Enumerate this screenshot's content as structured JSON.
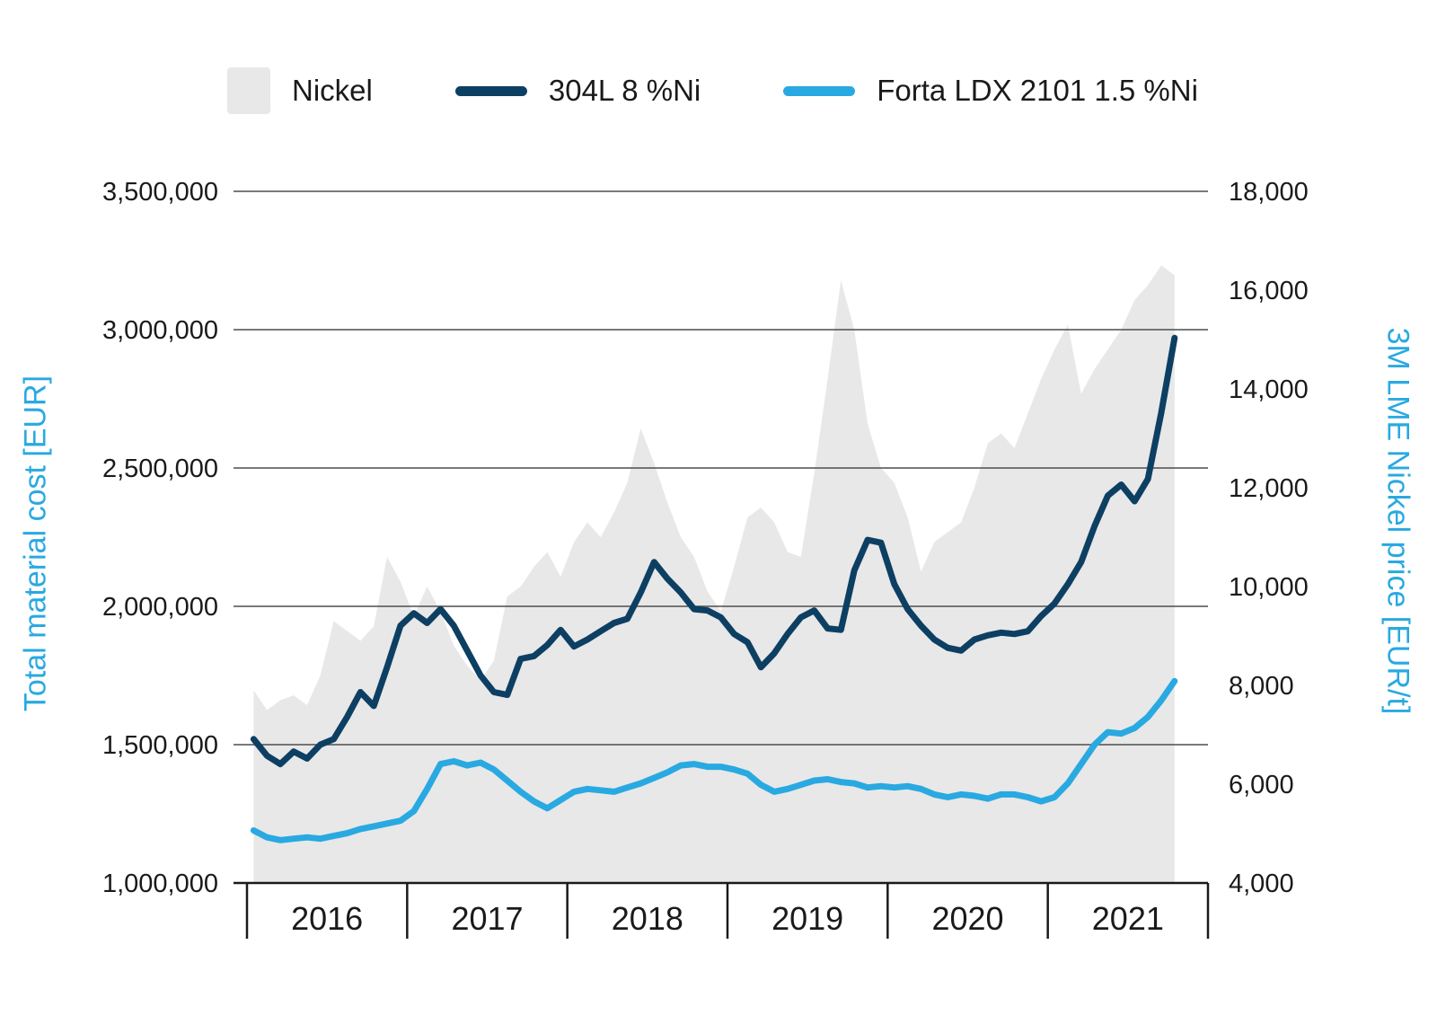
{
  "chart_data": {
    "type": "line",
    "title": "",
    "years": [
      "2016",
      "2017",
      "2018",
      "2019",
      "2020",
      "2021"
    ],
    "left_axis": {
      "label": "Total material cost [EUR]",
      "min": 1000000,
      "max": 3500000,
      "tick_values": [
        1000000,
        1500000,
        2000000,
        2500000,
        3000000,
        3500000
      ],
      "tick_labels": [
        "1,000,000",
        "1,500,000",
        "2,000,000",
        "2,500,000",
        "3,000,000",
        "3,500,000"
      ]
    },
    "right_axis": {
      "label": "3M LME Nickel price [EUR/t]",
      "min": 4000,
      "max": 18000,
      "tick_values": [
        4000,
        6000,
        8000,
        10000,
        12000,
        14000,
        16000,
        18000
      ],
      "tick_labels": [
        "4,000",
        "6,000",
        "8,000",
        "10,000",
        "12,000",
        "14,000",
        "16,000",
        "18,000"
      ]
    },
    "grid": "horizontal",
    "legend_position": "top",
    "series": [
      {
        "name": "Nickel",
        "type": "area",
        "axis": "right",
        "color": "#e8e8e8",
        "values": [
          7900,
          7500,
          7700,
          7800,
          7600,
          8200,
          9300,
          9100,
          8900,
          9200,
          10600,
          10100,
          9400,
          10000,
          9500,
          8800,
          8400,
          8100,
          8500,
          9800,
          10000,
          10400,
          10700,
          10200,
          10900,
          11300,
          11000,
          11500,
          12100,
          13200,
          12500,
          11700,
          11000,
          10600,
          9900,
          9500,
          10400,
          11400,
          11600,
          11300,
          10700,
          10600,
          12300,
          14200,
          16200,
          15200,
          13300,
          12400,
          12100,
          11400,
          10300,
          10900,
          11100,
          11300,
          12000,
          12900,
          13100,
          12800,
          13500,
          14200,
          14800,
          15300,
          13900,
          14400,
          14800,
          15200,
          15800,
          16100,
          16500,
          16300
        ]
      },
      {
        "name": "304L 8 %Ni",
        "type": "line",
        "axis": "left",
        "color": "#0d3f63",
        "values": [
          1520000,
          1460000,
          1430000,
          1475000,
          1450000,
          1500000,
          1520000,
          1600000,
          1690000,
          1640000,
          1780000,
          1930000,
          1975000,
          1940000,
          1990000,
          1930000,
          1840000,
          1750000,
          1690000,
          1680000,
          1810000,
          1820000,
          1860000,
          1915000,
          1855000,
          1880000,
          1910000,
          1940000,
          1955000,
          2050000,
          2160000,
          2100000,
          2050000,
          1990000,
          1985000,
          1960000,
          1900000,
          1870000,
          1780000,
          1830000,
          1900000,
          1960000,
          1985000,
          1920000,
          1915000,
          2130000,
          2240000,
          2230000,
          2080000,
          1990000,
          1930000,
          1880000,
          1850000,
          1840000,
          1880000,
          1895000,
          1905000,
          1900000,
          1910000,
          1965000,
          2010000,
          2080000,
          2160000,
          2290000,
          2400000,
          2440000,
          2380000,
          2460000,
          2700000,
          2970000
        ]
      },
      {
        "name": "Forta LDX 2101 1.5 %Ni",
        "type": "line",
        "axis": "left",
        "color": "#29a9e1",
        "values": [
          1190000,
          1165000,
          1155000,
          1160000,
          1165000,
          1160000,
          1170000,
          1180000,
          1195000,
          1205000,
          1215000,
          1225000,
          1260000,
          1340000,
          1430000,
          1440000,
          1425000,
          1435000,
          1410000,
          1370000,
          1330000,
          1295000,
          1270000,
          1300000,
          1330000,
          1340000,
          1335000,
          1330000,
          1345000,
          1360000,
          1380000,
          1400000,
          1425000,
          1430000,
          1420000,
          1420000,
          1410000,
          1395000,
          1355000,
          1330000,
          1340000,
          1355000,
          1370000,
          1375000,
          1365000,
          1360000,
          1345000,
          1350000,
          1345000,
          1350000,
          1340000,
          1320000,
          1310000,
          1320000,
          1315000,
          1305000,
          1320000,
          1320000,
          1310000,
          1295000,
          1310000,
          1360000,
          1430000,
          1500000,
          1545000,
          1540000,
          1560000,
          1600000,
          1660000,
          1730000
        ]
      }
    ],
    "legend": [
      {
        "label": "Nickel",
        "swatch": "area",
        "color": "#e8e8e8"
      },
      {
        "label": "304L 8 %Ni",
        "swatch": "line",
        "color": "#0d3f63"
      },
      {
        "label": "Forta LDX 2101 1.5 %Ni",
        "swatch": "line",
        "color": "#29a9e1"
      }
    ],
    "colors": {
      "grid": "#4d4d4d",
      "axis": "#1a1a1a",
      "accent_blue": "#29a9e1",
      "navy": "#0d3f63",
      "area_gray": "#e8e8e8"
    }
  }
}
